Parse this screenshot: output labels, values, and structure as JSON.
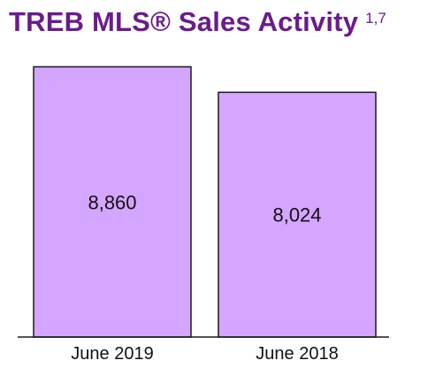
{
  "title": "TREB MLS® Sales Activity",
  "title_superscript": "1,7",
  "colors": {
    "title": "#6a1b8c",
    "bar_fill": "#d5a6ff",
    "bar_stroke": "#1a1a1a",
    "axis": "#1a1a1a"
  },
  "chart_data": {
    "type": "bar",
    "categories": [
      "June 2019",
      "June 2018"
    ],
    "values": [
      8860,
      8024
    ],
    "value_labels": [
      "8,860",
      "8,024"
    ],
    "ylim": [
      0,
      9600
    ],
    "grid": false,
    "legend": "none"
  }
}
